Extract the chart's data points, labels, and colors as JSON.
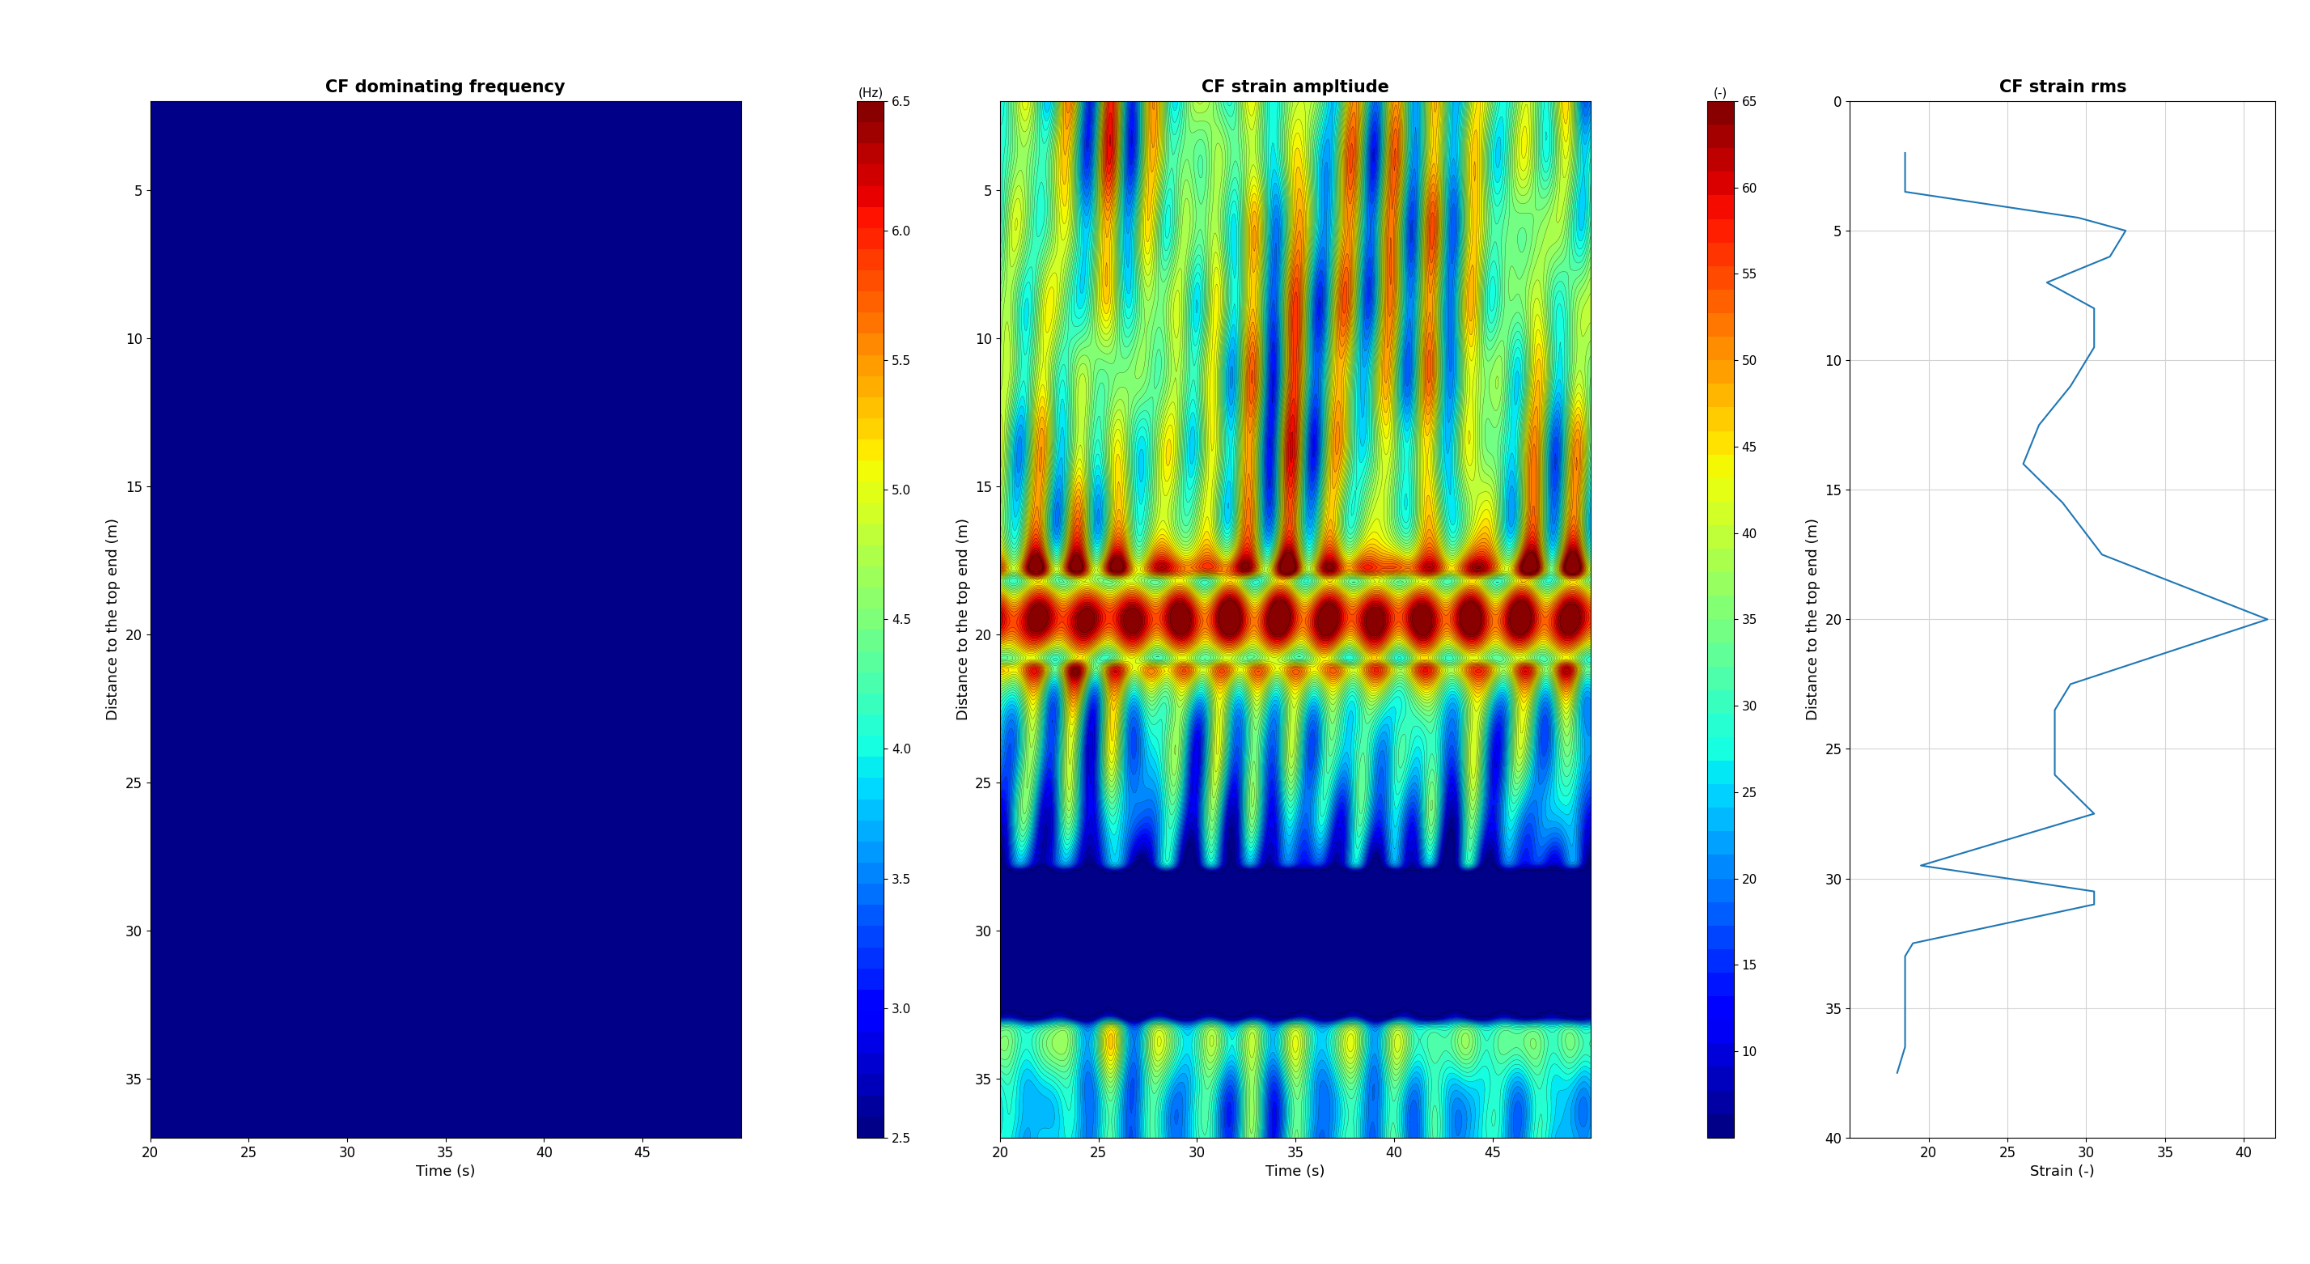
{
  "title1": "CF dominating frequency",
  "title2": "CF strain ampltiude",
  "title3": "CF strain rms",
  "xlabel": "Time (s)",
  "ylabel": "Distance to the top end (m)",
  "xlabel3": "Strain (-)",
  "cbar1_label": "(Hz)",
  "cbar2_label": "(-)",
  "time_min": 20,
  "time_max": 50,
  "dist_min": 2,
  "dist_max": 37,
  "cbar1_min": 2.5,
  "cbar1_max": 6.5,
  "cbar2_min": 5,
  "cbar2_max": 65,
  "plot3_xlim": [
    15,
    42
  ],
  "plot3_ylim": [
    0,
    40
  ],
  "line_color": "#1f77b4",
  "rms_depths": [
    2.0,
    3.5,
    4.5,
    5.0,
    6.0,
    7.0,
    8.0,
    9.5,
    11.0,
    12.5,
    14.0,
    15.5,
    17.5,
    20.0,
    22.5,
    23.5,
    26.0,
    27.5,
    29.5,
    30.5,
    31.0,
    32.5,
    33.0,
    35.5,
    36.5,
    37.5
  ],
  "rms_values": [
    18.5,
    18.5,
    29.5,
    32.5,
    31.5,
    27.5,
    30.5,
    30.5,
    29.0,
    27.0,
    26.0,
    28.5,
    31.0,
    41.5,
    29.0,
    28.0,
    28.0,
    30.5,
    19.5,
    30.5,
    30.5,
    19.0,
    18.5,
    18.5,
    18.5,
    18.0
  ]
}
